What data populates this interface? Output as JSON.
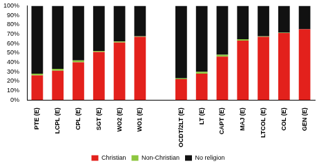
{
  "chart_data": {
    "type": "bar",
    "stacked": true,
    "grid": false,
    "legend": "bottom",
    "categories": [
      "PTE (E)",
      "LCPL (E)",
      "CPL (E)",
      "SGT (E)",
      "WO2 (E)",
      "WO1 (E)",
      null,
      "OCDT/2LT (E)",
      "LT (E)",
      "CAPT (E)",
      "MAJ (E)",
      "LTCOL (E)",
      "COL (E)",
      "GEN (E)"
    ],
    "series": [
      {
        "name": "Christian",
        "color": "#e3211c",
        "values": [
          26,
          31,
          40,
          51,
          61,
          67,
          null,
          22,
          28,
          46,
          63,
          67,
          71,
          75
        ]
      },
      {
        "name": "Non-Christian",
        "color": "#8dc63f",
        "values": [
          2,
          2,
          2,
          1,
          1,
          0.5,
          null,
          1,
          2,
          2,
          1.5,
          0.5,
          0.5,
          0
        ]
      },
      {
        "name": "No religion",
        "color": "#111111",
        "values": [
          72,
          67,
          58,
          48,
          38,
          32.5,
          null,
          77,
          70,
          52,
          35.5,
          32.5,
          28.5,
          25
        ]
      }
    ],
    "ylim": [
      0,
      100
    ],
    "yticks": [
      {
        "value": 0,
        "label": "0%"
      },
      {
        "value": 10,
        "label": "10%"
      },
      {
        "value": 20,
        "label": "20%"
      },
      {
        "value": 30,
        "label": "30%"
      },
      {
        "value": 40,
        "label": "40%"
      },
      {
        "value": 50,
        "label": "50%"
      },
      {
        "value": 60,
        "label": "60%"
      },
      {
        "value": 70,
        "label": "70%"
      },
      {
        "value": 80,
        "label": "80%"
      },
      {
        "value": 90,
        "label": "90%"
      },
      {
        "value": 100,
        "label": "100%"
      }
    ]
  }
}
